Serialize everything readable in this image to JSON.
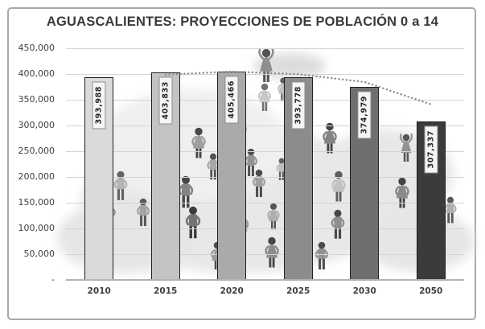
{
  "window": {
    "background": "#ffffff",
    "frame_border_color": "#a9a9a9"
  },
  "chart_data": {
    "type": "bar",
    "title": "AGUASCALIENTES: PROYECCIONES DE POBLACIÓN 0 a 14",
    "title_color": "#3a3a3a",
    "categories": [
      "2010",
      "2015",
      "2020",
      "2025",
      "2030",
      "2050"
    ],
    "values": [
      393988,
      403833,
      405466,
      393778,
      374979,
      307337
    ],
    "bar_labels": [
      "393,988",
      "403,833",
      "405,466",
      "393,778",
      "374,979",
      "307,337"
    ],
    "bar_colors": [
      "#dadada",
      "#c3c3c3",
      "#aaaaaa",
      "#8c8c8c",
      "#6f6f6f",
      "#3b3b3b"
    ],
    "bar_border_color": "#1f1f1f",
    "ylim": [
      0,
      450000
    ],
    "ytick_interval": 50000,
    "ytick_labels": [
      "450,000",
      "400,000",
      "350,000",
      "300,000",
      "250,000",
      "200,000",
      "150,000",
      "100,000",
      "50,000",
      "-"
    ],
    "grid": true,
    "gridline_color": "#d4d4d4",
    "axis_line_color": "#b3b3b3",
    "legend": "none",
    "xlabel": "",
    "ylabel": "",
    "tick_color": "#404040",
    "value_label_box": {
      "background": "#f5f5f5",
      "border": "#8f8f8f",
      "text_color": "#262626",
      "orientation": "rotated-90"
    },
    "trendline": {
      "style": "dotted",
      "color": "#8a8a8a",
      "description": "2-period moving average",
      "x": [
        "2015",
        "2020",
        "2025",
        "2030",
        "2050"
      ],
      "values": [
        398911,
        404650,
        399622,
        384379,
        341158
      ]
    },
    "background_illustration": "faded grayscale clip-art crowd of people (pyramid arrangement) over soft map-silhouette watermark"
  }
}
